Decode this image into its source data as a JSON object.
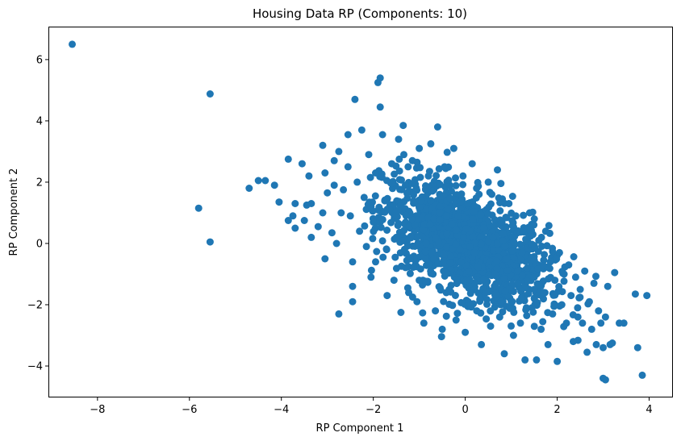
{
  "chart_data": {
    "type": "scatter",
    "title": "Housing Data RP (Components: 10)",
    "xlabel": "RP Component 1",
    "ylabel": "RP Component 2",
    "xlim": [
      -9.05,
      4.5
    ],
    "ylim": [
      -5.0,
      7.05
    ],
    "x_ticks": [
      -8,
      -6,
      -4,
      -2,
      0,
      2,
      4
    ],
    "y_ticks": [
      -4,
      -2,
      0,
      2,
      4,
      6
    ],
    "x_tick_labels": [
      "−8",
      "−6",
      "−4",
      "−2",
      "0",
      "2",
      "4"
    ],
    "y_tick_labels": [
      "−4",
      "−2",
      "0",
      "2",
      "4",
      "6"
    ],
    "grid": false,
    "marker_color": "#1f77b4",
    "marker_shape": "circle",
    "dense_cloud": {
      "description_center": [
        0.0,
        0.0
      ],
      "approx_point_count": 1500,
      "x_std": 0.9,
      "y_std": 1.0,
      "correlation": -0.55
    },
    "points": [
      [
        -8.55,
        6.5
      ],
      [
        -5.55,
        4.88
      ],
      [
        -5.8,
        1.15
      ],
      [
        -5.55,
        0.05
      ],
      [
        -4.7,
        1.8
      ],
      [
        -4.5,
        2.05
      ],
      [
        -4.35,
        2.05
      ],
      [
        -4.15,
        1.9
      ],
      [
        -4.05,
        1.35
      ],
      [
        -3.85,
        2.75
      ],
      [
        -3.85,
        0.75
      ],
      [
        -3.75,
        0.9
      ],
      [
        -3.7,
        0.5
      ],
      [
        -3.7,
        1.3
      ],
      [
        -3.55,
        2.6
      ],
      [
        -3.5,
        0.75
      ],
      [
        -3.45,
        1.25
      ],
      [
        -3.4,
        2.2
      ],
      [
        -3.35,
        0.2
      ],
      [
        -3.35,
        1.3
      ],
      [
        -3.2,
        0.55
      ],
      [
        -3.1,
        3.2
      ],
      [
        -3.1,
        1.0
      ],
      [
        -3.05,
        2.3
      ],
      [
        -3.05,
        -0.5
      ],
      [
        -3.0,
        1.65
      ],
      [
        -2.9,
        0.35
      ],
      [
        -2.85,
        2.7
      ],
      [
        -2.85,
        1.9
      ],
      [
        -2.8,
        0.0
      ],
      [
        -2.75,
        3.0
      ],
      [
        -2.75,
        -2.3
      ],
      [
        -2.7,
        1.0
      ],
      [
        -2.65,
        1.75
      ],
      [
        -2.55,
        3.55
      ],
      [
        -2.55,
        2.5
      ],
      [
        -2.5,
        0.9
      ],
      [
        -2.45,
        -0.6
      ],
      [
        -2.45,
        -1.4
      ],
      [
        -2.45,
        -1.9
      ],
      [
        -2.4,
        4.7
      ],
      [
        -2.35,
        2.0
      ],
      [
        -2.3,
        0.4
      ],
      [
        -2.25,
        3.7
      ],
      [
        -2.2,
        1.5
      ],
      [
        -2.15,
        -0.1
      ],
      [
        -2.1,
        2.9
      ],
      [
        -2.05,
        1.2
      ],
      [
        -2.05,
        -1.1
      ],
      [
        -2.0,
        0.7
      ],
      [
        -1.95,
        -0.6
      ],
      [
        -1.95,
        2.3
      ],
      [
        -1.9,
        5.25
      ],
      [
        -1.85,
        5.4
      ],
      [
        -1.85,
        4.45
      ],
      [
        -1.8,
        3.55
      ],
      [
        -1.7,
        -1.7
      ],
      [
        -1.65,
        1.1
      ],
      [
        -1.6,
        2.6
      ],
      [
        -1.55,
        -1.2
      ],
      [
        -1.5,
        0.2
      ],
      [
        -1.45,
        3.4
      ],
      [
        -1.4,
        -2.25
      ],
      [
        -1.35,
        3.85
      ],
      [
        -1.3,
        1.9
      ],
      [
        -1.25,
        -1.45
      ],
      [
        -1.2,
        -0.5
      ],
      [
        -1.15,
        2.7
      ],
      [
        -1.1,
        0.6
      ],
      [
        -1.05,
        -1.9
      ],
      [
        -1.0,
        3.1
      ],
      [
        -0.95,
        1.4
      ],
      [
        -0.9,
        -2.6
      ],
      [
        -0.85,
        0.0
      ],
      [
        -0.8,
        2.2
      ],
      [
        -0.75,
        3.25
      ],
      [
        -0.7,
        -1.0
      ],
      [
        -0.65,
        -2.2
      ],
      [
        -0.6,
        3.8
      ],
      [
        -0.55,
        1.0
      ],
      [
        -0.5,
        -2.8
      ],
      [
        -0.45,
        2.5
      ],
      [
        -0.4,
        0.3
      ],
      [
        -0.35,
        -1.5
      ],
      [
        -0.3,
        1.7
      ],
      [
        -0.25,
        3.1
      ],
      [
        -0.2,
        -2.5
      ],
      [
        -0.15,
        0.9
      ],
      [
        -0.1,
        -0.6
      ],
      [
        -0.05,
        2.2
      ],
      [
        0.0,
        -2.9
      ],
      [
        0.05,
        1.3
      ],
      [
        0.1,
        -1.2
      ],
      [
        0.15,
        2.6
      ],
      [
        0.2,
        -0.3
      ],
      [
        0.25,
        -2.2
      ],
      [
        0.3,
        1.6
      ],
      [
        0.35,
        -3.3
      ],
      [
        0.4,
        0.5
      ],
      [
        0.45,
        -1.6
      ],
      [
        0.5,
        2.0
      ],
      [
        0.55,
        -2.7
      ],
      [
        0.6,
        0.2
      ],
      [
        0.65,
        -1.0
      ],
      [
        0.7,
        2.4
      ],
      [
        0.75,
        -2.4
      ],
      [
        0.8,
        0.7
      ],
      [
        0.85,
        -3.6
      ],
      [
        0.9,
        -0.5
      ],
      [
        0.95,
        1.3
      ],
      [
        1.0,
        -1.9
      ],
      [
        1.05,
        -3.0
      ],
      [
        1.1,
        0.9
      ],
      [
        1.15,
        -1.3
      ],
      [
        1.2,
        -2.6
      ],
      [
        1.25,
        0.4
      ],
      [
        1.3,
        -3.8
      ],
      [
        1.35,
        -0.8
      ],
      [
        1.4,
        1.0
      ],
      [
        1.45,
        -2.1
      ],
      [
        1.5,
        -1.1
      ],
      [
        1.55,
        -3.8
      ],
      [
        1.6,
        0.1
      ],
      [
        1.65,
        -2.8
      ],
      [
        1.7,
        -1.6
      ],
      [
        1.75,
        0.4
      ],
      [
        1.8,
        -3.3
      ],
      [
        1.85,
        -0.6
      ],
      [
        1.9,
        -2.3
      ],
      [
        1.95,
        -1.2
      ],
      [
        2.0,
        -3.85
      ],
      [
        2.05,
        -0.3
      ],
      [
        2.1,
        -2.0
      ],
      [
        2.15,
        -1.0
      ],
      [
        2.2,
        -2.6
      ],
      [
        2.25,
        -0.7
      ],
      [
        2.3,
        -1.7
      ],
      [
        2.35,
        -3.2
      ],
      [
        2.4,
        -1.1
      ],
      [
        2.45,
        -2.4
      ],
      [
        2.5,
        -1.5
      ],
      [
        2.55,
        -2.6
      ],
      [
        2.6,
        -0.9
      ],
      [
        2.65,
        -3.55
      ],
      [
        2.7,
        -1.9
      ],
      [
        2.75,
        -2.8
      ],
      [
        2.8,
        -1.3
      ],
      [
        2.85,
        -3.3
      ],
      [
        2.9,
        -2.2
      ],
      [
        2.95,
        -2.6
      ],
      [
        3.0,
        -3.4
      ],
      [
        3.0,
        -4.4
      ],
      [
        3.05,
        -4.45
      ],
      [
        3.05,
        -2.4
      ],
      [
        3.1,
        -1.4
      ],
      [
        3.15,
        -3.3
      ],
      [
        3.2,
        -3.25
      ],
      [
        3.25,
        -0.95
      ],
      [
        3.35,
        -2.6
      ],
      [
        3.45,
        -2.6
      ],
      [
        3.7,
        -1.65
      ],
      [
        3.75,
        -3.4
      ],
      [
        3.85,
        -4.3
      ],
      [
        3.95,
        -1.7
      ]
    ]
  }
}
